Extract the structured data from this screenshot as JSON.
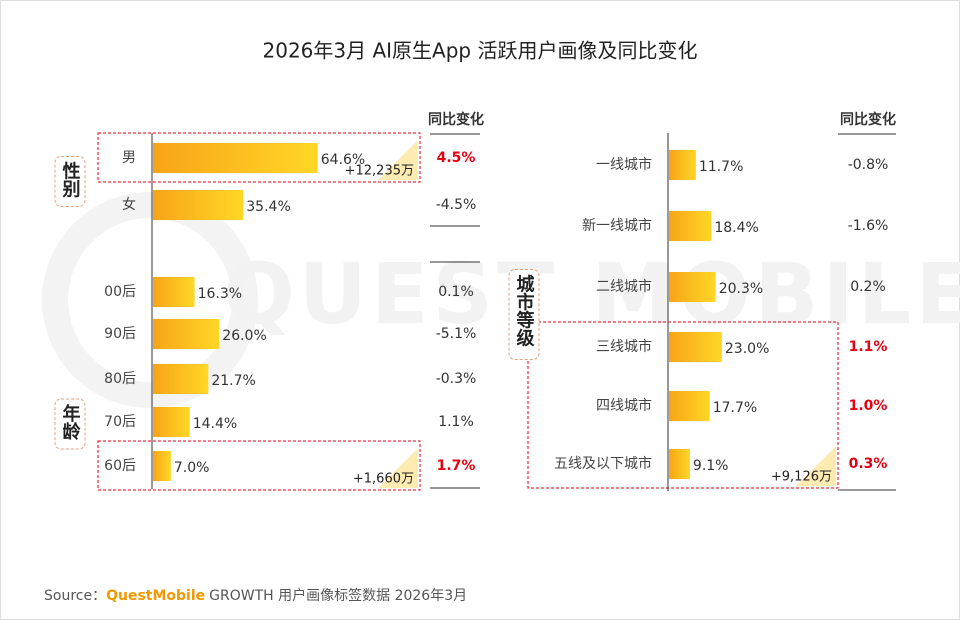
{
  "title": "2026年3月 AI原生App 活跃用户画像及同比变化",
  "watermark": "QUEST MOBILE",
  "source": {
    "prefix": "Source：",
    "brand": "QuestMobile",
    "text": "GROWTH 用户画像标签数据 2026年3月"
  },
  "chart_data": [
    {
      "type": "bar",
      "orientation": "horizontal",
      "categories": [
        "男",
        "女",
        "00后",
        "90后",
        "80后",
        "70后",
        "60后"
      ],
      "values": [
        64.6,
        35.4,
        16.3,
        26.0,
        21.7,
        14.4,
        7.0
      ],
      "value_labels": [
        "64.6%",
        "35.4%",
        "16.3%",
        "26.0%",
        "21.7%",
        "14.4%",
        "7.0%"
      ],
      "change_header": "同比变化",
      "changes": [
        "4.5%",
        "-4.5%",
        "0.1%",
        "-5.1%",
        "-0.3%",
        "1.1%",
        "1.7%"
      ],
      "groups": [
        {
          "label": "性别",
          "categories": [
            "男",
            "女"
          ]
        },
        {
          "label": "年龄",
          "categories": [
            "00后",
            "90后",
            "80后",
            "70后",
            "60后"
          ]
        }
      ],
      "highlighted": [
        "男",
        "60后"
      ],
      "annotations": [
        {
          "category": "男",
          "text": "+12,235万"
        },
        {
          "category": "60后",
          "text": "+1,660万"
        }
      ],
      "color": [
        "#f7a418",
        "#ffd726"
      ],
      "highlight_color": "#e60012"
    },
    {
      "type": "bar",
      "orientation": "horizontal",
      "categories": [
        "一线城市",
        "新一线城市",
        "二线城市",
        "三线城市",
        "四线城市",
        "五线及以下城市"
      ],
      "values": [
        11.7,
        18.4,
        20.3,
        23.0,
        17.7,
        9.1
      ],
      "value_labels": [
        "11.7%",
        "18.4%",
        "20.3%",
        "23.0%",
        "17.7%",
        "9.1%"
      ],
      "change_header": "同比变化",
      "changes": [
        "-0.8%",
        "-1.6%",
        "0.2%",
        "1.1%",
        "1.0%",
        "0.3%"
      ],
      "groups": [
        {
          "label": "城市等级",
          "categories": [
            "一线城市",
            "新一线城市",
            "二线城市",
            "三线城市",
            "四线城市",
            "五线及以下城市"
          ]
        }
      ],
      "highlighted": [
        "三线城市",
        "四线城市",
        "五线及以下城市"
      ],
      "annotations": [
        {
          "category": "五线及以下城市",
          "text": "+9,126万"
        }
      ],
      "color": [
        "#f7a418",
        "#ffd726"
      ],
      "highlight_color": "#e60012"
    }
  ]
}
